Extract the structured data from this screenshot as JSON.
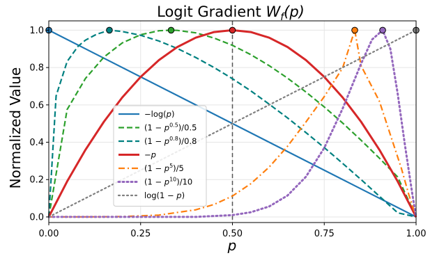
{
  "chart_data": {
    "type": "line",
    "title": "Logit Gradient W_f(p)",
    "title_parts": {
      "main": "Logit Gradient ",
      "var": "W",
      "sub": "f",
      "arg": "(p)"
    },
    "xlabel": "p",
    "ylabel": "Normalized Value",
    "xlim": [
      0,
      1
    ],
    "ylim": [
      -0.03,
      1.05
    ],
    "xticks": [
      0,
      0.25,
      0.5,
      0.75,
      1.0
    ],
    "xtick_labels": [
      "0.00",
      "0.25",
      "0.50",
      "0.75",
      "1.00"
    ],
    "yticks": [
      0,
      0.2,
      0.4,
      0.6,
      0.8,
      1.0
    ],
    "ytick_labels": [
      "0.0",
      "0.2",
      "0.4",
      "0.6",
      "0.8",
      "1.0"
    ],
    "grid": true,
    "legend_position": "lower-left",
    "reference_line": {
      "x": 0.5,
      "style": "dashed",
      "color": "#555555"
    },
    "series": [
      {
        "name": "−log(p)",
        "color": "#1f77b4",
        "dash": "solid",
        "width": 2.2,
        "x": [
          0,
          1
        ],
        "y": [
          1,
          0
        ],
        "peak": {
          "x": 0,
          "y": 1
        }
      },
      {
        "name": "(1 − p^0.5)/0.5",
        "color": "#2ca02c",
        "dash": "dashed",
        "width": 2.2,
        "x": [
          0,
          0.05,
          0.1,
          0.15,
          0.2,
          0.25,
          0.3,
          0.333,
          0.35,
          0.4,
          0.45,
          0.5,
          0.55,
          0.6,
          0.65,
          0.7,
          0.75,
          0.8,
          0.85,
          0.9,
          0.95,
          1
        ],
        "y": [
          0,
          0.575,
          0.742,
          0.856,
          0.932,
          0.976,
          0.997,
          1.0,
          0.999,
          0.986,
          0.958,
          0.919,
          0.869,
          0.81,
          0.743,
          0.669,
          0.589,
          0.503,
          0.411,
          0.315,
          0.214,
          0
        ],
        "peak": {
          "x": 0.333,
          "y": 1
        }
      },
      {
        "name": "(1 − p^0.8)/0.8",
        "color": "#008080",
        "dash": "dashed",
        "width": 2.2,
        "x": [
          0,
          0.02,
          0.05,
          0.08,
          0.1,
          0.13,
          0.165,
          0.2,
          0.25,
          0.3,
          0.35,
          0.4,
          0.45,
          0.5,
          0.55,
          0.6,
          0.65,
          0.7,
          0.75,
          0.8,
          0.85,
          0.9,
          0.95,
          1
        ],
        "y": [
          0,
          0.648,
          0.832,
          0.915,
          0.947,
          0.978,
          1.0,
          0.993,
          0.973,
          0.942,
          0.902,
          0.854,
          0.8,
          0.74,
          0.675,
          0.604,
          0.53,
          0.452,
          0.371,
          0.287,
          0.2,
          0.111,
          0.022,
          0
        ],
        "peak": {
          "x": 0.165,
          "y": 1
        }
      },
      {
        "name": "−p",
        "color": "#d62728",
        "dash": "solid",
        "width": 3,
        "x": [
          0,
          0.05,
          0.1,
          0.15,
          0.2,
          0.25,
          0.3,
          0.35,
          0.4,
          0.45,
          0.5,
          0.55,
          0.6,
          0.65,
          0.7,
          0.75,
          0.8,
          0.85,
          0.9,
          0.95,
          1
        ],
        "y": [
          0,
          0.19,
          0.36,
          0.51,
          0.64,
          0.75,
          0.84,
          0.91,
          0.96,
          0.99,
          1.0,
          0.99,
          0.96,
          0.91,
          0.84,
          0.75,
          0.64,
          0.51,
          0.36,
          0.19,
          0
        ],
        "peak": {
          "x": 0.5,
          "y": 1
        }
      },
      {
        "name": "(1 − p^5)/5",
        "color": "#ff7f0e",
        "dash": "dashdot",
        "width": 2.2,
        "x": [
          0,
          0.1,
          0.2,
          0.3,
          0.4,
          0.45,
          0.5,
          0.55,
          0.6,
          0.65,
          0.7,
          0.75,
          0.8,
          0.833,
          0.85,
          0.9,
          0.93,
          0.96,
          0.98,
          1
        ],
        "y": [
          0,
          0.0,
          0.002,
          0.01,
          0.038,
          0.067,
          0.112,
          0.178,
          0.267,
          0.379,
          0.508,
          0.645,
          0.798,
          1.0,
          0.81,
          0.62,
          0.44,
          0.26,
          0.12,
          0
        ],
        "peak": {
          "x": 0.833,
          "y": 1
        }
      },
      {
        "name": "(1 − p^10)/10",
        "color": "#9467bd",
        "dash": "dotted",
        "width": 3,
        "x": [
          0,
          0.2,
          0.3,
          0.4,
          0.5,
          0.55,
          0.6,
          0.65,
          0.7,
          0.75,
          0.8,
          0.85,
          0.88,
          0.909,
          0.93,
          0.95,
          0.97,
          0.99,
          1
        ],
        "y": [
          0,
          0.0,
          0.0,
          0.0,
          0.01,
          0.025,
          0.056,
          0.115,
          0.215,
          0.37,
          0.58,
          0.82,
          0.95,
          1.0,
          0.9,
          0.66,
          0.38,
          0.12,
          0
        ],
        "peak": {
          "x": 0.909,
          "y": 1
        }
      },
      {
        "name": "log(1 − p)",
        "color": "#7f7f7f",
        "dash": "dotted",
        "width": 2.2,
        "x": [
          0,
          1
        ],
        "y": [
          0,
          1
        ],
        "peak": {
          "x": 1,
          "y": 1
        }
      }
    ],
    "legend": [
      {
        "text": "−log(",
        "italic": "p",
        "tail": ")"
      },
      {
        "text": "(1 − ",
        "italic": "p",
        "sup": "0.5",
        "tail": ")/0.5"
      },
      {
        "text": "(1 − ",
        "italic": "p",
        "sup": "0.8",
        "tail": ")/0.8"
      },
      {
        "text": "−",
        "italic": "p",
        "tail": ""
      },
      {
        "text": "(1 − ",
        "italic": "p",
        "sup": "5",
        "tail": ")/5"
      },
      {
        "text": "(1 − ",
        "italic": "p",
        "sup": "10",
        "tail": ")/10"
      },
      {
        "text": "log(1 − ",
        "italic": "p",
        "tail": ")"
      }
    ]
  }
}
